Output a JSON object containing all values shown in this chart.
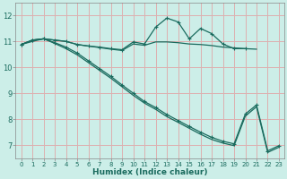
{
  "xlabel": "Humidex (Indice chaleur)",
  "bg_color": "#cceee8",
  "grid_color": "#ddb0b0",
  "line_color": "#1a6b5e",
  "xlim": [
    -0.5,
    23.5
  ],
  "ylim": [
    6.5,
    12.5
  ],
  "xticks": [
    0,
    1,
    2,
    3,
    4,
    5,
    6,
    7,
    8,
    9,
    10,
    11,
    12,
    13,
    14,
    15,
    16,
    17,
    18,
    19,
    20,
    21,
    22,
    23
  ],
  "yticks": [
    7,
    8,
    9,
    10,
    11,
    12
  ],
  "series": [
    {
      "x": [
        0,
        1,
        2,
        3,
        4,
        5,
        6,
        7,
        8,
        9,
        10,
        11,
        12,
        13,
        14,
        15,
        16,
        17,
        18,
        19,
        20
      ],
      "y": [
        10.88,
        11.05,
        11.1,
        11.05,
        11.0,
        10.88,
        10.82,
        10.78,
        10.72,
        10.68,
        10.98,
        10.9,
        11.55,
        11.9,
        11.75,
        11.1,
        11.5,
        11.3,
        10.9,
        10.72,
        10.72
      ],
      "marker": "+"
    },
    {
      "x": [
        0,
        1,
        2,
        3,
        4,
        5,
        6,
        7,
        8,
        9,
        10,
        11,
        12,
        13,
        14,
        15,
        16,
        17,
        18,
        19,
        20,
        21
      ],
      "y": [
        10.88,
        11.05,
        11.1,
        11.05,
        11.0,
        10.88,
        10.82,
        10.76,
        10.7,
        10.65,
        10.9,
        10.85,
        10.98,
        10.98,
        10.95,
        10.9,
        10.88,
        10.84,
        10.78,
        10.75,
        10.72,
        10.7
      ],
      "marker": null
    },
    {
      "x": [
        0,
        1,
        2,
        3,
        4,
        5,
        6,
        7,
        8,
        9,
        10,
        11,
        12,
        13,
        14,
        15,
        16,
        17,
        18,
        19,
        20,
        21,
        22,
        23
      ],
      "y": [
        10.88,
        11.05,
        11.1,
        10.95,
        10.78,
        10.55,
        10.25,
        9.95,
        9.65,
        9.32,
        9.0,
        8.68,
        8.45,
        8.18,
        7.95,
        7.72,
        7.5,
        7.3,
        7.15,
        7.05,
        8.2,
        8.55,
        6.78,
        6.98
      ],
      "marker": "+"
    },
    {
      "x": [
        0,
        1,
        2,
        3,
        4,
        5,
        6,
        7,
        8,
        9,
        10,
        11,
        12,
        13,
        14,
        15,
        16,
        17,
        18,
        19,
        20,
        21,
        22,
        23
      ],
      "y": [
        10.88,
        11.0,
        11.1,
        10.92,
        10.72,
        10.48,
        10.18,
        9.88,
        9.58,
        9.25,
        8.92,
        8.62,
        8.38,
        8.1,
        7.88,
        7.65,
        7.42,
        7.22,
        7.08,
        6.98,
        8.12,
        8.48,
        6.72,
        6.92
      ],
      "marker": null
    }
  ]
}
